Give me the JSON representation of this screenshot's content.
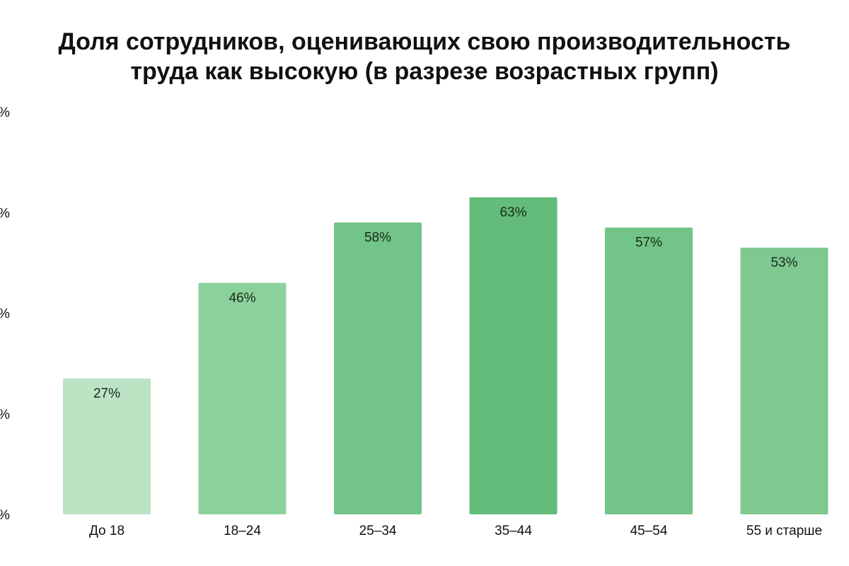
{
  "chart_data": {
    "type": "bar",
    "title": "Доля сотрудников, оценивающих свою производительность\nтруда как высокую (в разрезе возрастных групп)",
    "categories": [
      "До 18",
      "18–24",
      "25–34",
      "35–44",
      "45–54",
      "55 и старше"
    ],
    "values": [
      27,
      46,
      58,
      63,
      57,
      53
    ],
    "data_labels": [
      "27%",
      "46%",
      "58%",
      "63%",
      "57%",
      "53%"
    ],
    "ylim": [
      0,
      80
    ],
    "yticks": [
      0,
      20,
      40,
      60,
      80
    ],
    "ytick_labels": [
      "%",
      "%",
      "%",
      "%",
      "%"
    ],
    "xlabel": "",
    "ylabel": "",
    "grid": false,
    "legend": "none",
    "bar_colors": [
      "#bde3c5",
      "#8bd19b",
      "#72c488",
      "#63bc7a",
      "#72c488",
      "#7fc990"
    ]
  }
}
